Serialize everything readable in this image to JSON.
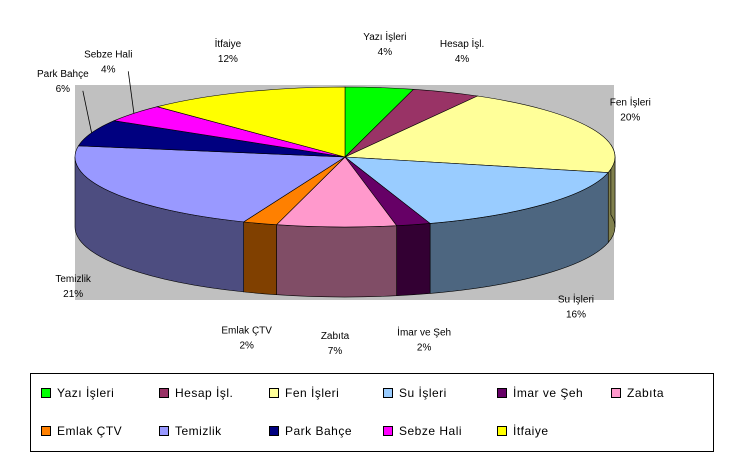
{
  "chart_data": {
    "type": "pie",
    "style": "3d-exploded-none",
    "background_color": "#c0c0c0",
    "start_angle_deg": 0,
    "direction": "clockwise",
    "slices": [
      {
        "label": "Yazı İşleri",
        "pct_label": "4%",
        "value": 4,
        "color": "#00ff00"
      },
      {
        "label": "Hesap İşl.",
        "pct_label": "4%",
        "value": 4,
        "color": "#993366"
      },
      {
        "label": "Fen İşleri",
        "pct_label": "20%",
        "value": 20,
        "color": "#ffff99"
      },
      {
        "label": "Su İşleri",
        "pct_label": "16%",
        "value": 16,
        "color": "#99ccff"
      },
      {
        "label": "İmar ve Şeh",
        "pct_label": "2%",
        "value": 2,
        "color": "#660066"
      },
      {
        "label": "Zabıta",
        "pct_label": "7%",
        "value": 7,
        "color": "#ff99cc"
      },
      {
        "label": "Emlak ÇTV",
        "pct_label": "2%",
        "value": 2,
        "color": "#ff8000"
      },
      {
        "label": "Temizlik",
        "pct_label": "21%",
        "value": 21,
        "color": "#9999ff"
      },
      {
        "label": "Park Bahçe",
        "pct_label": "6%",
        "value": 6,
        "color": "#000080"
      },
      {
        "label": "Sebze Hali",
        "pct_label": "4%",
        "value": 4,
        "color": "#ff00ff"
      },
      {
        "label": "İtfaiye",
        "pct_label": "12%",
        "value": 12,
        "color": "#ffff00"
      }
    ],
    "legend": {
      "placement": "bottom",
      "entries": [
        "Yazı İşleri",
        "Hesap İşl.",
        "Fen İşleri",
        "Su İşleri",
        "İmar ve Şeh",
        "Zabıta",
        "Emlak ÇTV",
        "Temizlik",
        "Park Bahçe",
        "Sebze Hali",
        "İtfaiye"
      ]
    }
  }
}
